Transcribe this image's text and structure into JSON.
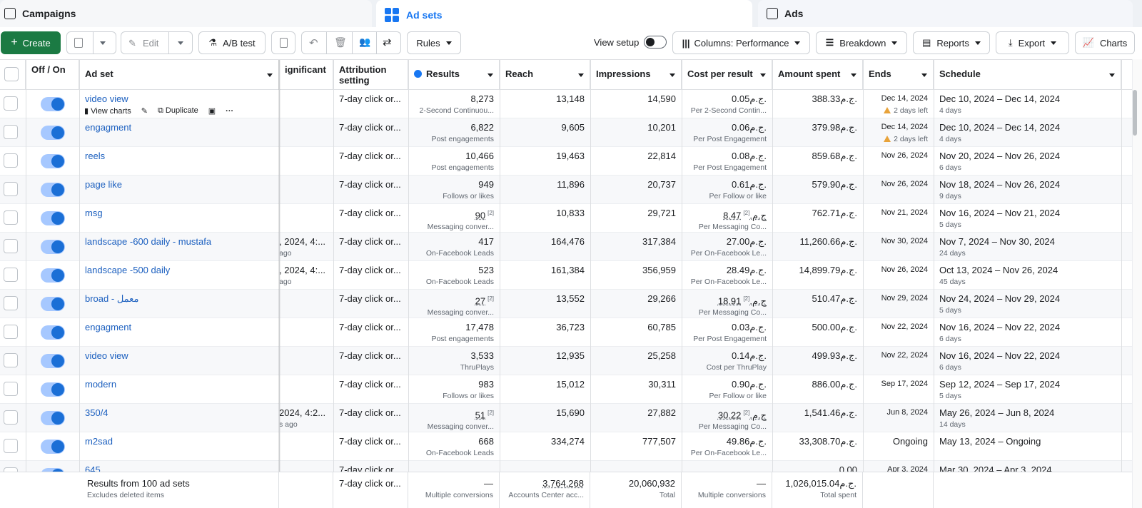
{
  "tabs": {
    "campaigns": "Campaigns",
    "adsets": "Ad sets",
    "ads": "Ads"
  },
  "toolbar": {
    "create": "Create",
    "edit": "Edit",
    "abtest": "A/B test",
    "rules": "Rules",
    "view_setup": "View setup",
    "columns": "Columns: Performance",
    "breakdown": "Breakdown",
    "reports": "Reports",
    "export": "Export",
    "charts": "Charts"
  },
  "columns": {
    "offon": "Off / On",
    "adset": "Ad set",
    "significant": "ignificant",
    "attribution": "Attribution setting",
    "results": "Results",
    "reach": "Reach",
    "impressions": "Impressions",
    "cpr": "Cost per result",
    "spent": "Amount spent",
    "ends": "Ends",
    "schedule": "Schedule"
  },
  "row_actions": {
    "charts": "View charts",
    "duplicate": "Duplicate"
  },
  "rows": [
    {
      "name": "video view",
      "sig": "",
      "sig_sub": "",
      "attr": "7-day click or...",
      "results": "8,273",
      "results_sub": "2-Second Continuou...",
      "reach": "13,148",
      "impr": "14,590",
      "cpr": "0.05ج.م.",
      "cpr_sub": "Per 2-Second Contin...",
      "spent": "388.33ج.م.",
      "ends": "Dec 14, 2024",
      "ends_sub": "2 days left",
      "sched": "Dec 10, 2024 – Dec 14, 2024",
      "sched_sub": "4 days"
    },
    {
      "name": "engagment",
      "sig": "",
      "sig_sub": "",
      "attr": "7-day click or...",
      "results": "6,822",
      "results_sub": "Post engagements",
      "reach": "9,605",
      "impr": "10,201",
      "cpr": "0.06ج.م.",
      "cpr_sub": "Per Post Engagement",
      "spent": "379.98ج.م.",
      "ends": "Dec 14, 2024",
      "ends_sub": "2 days left",
      "sched": "Dec 10, 2024 – Dec 14, 2024",
      "sched_sub": "4 days"
    },
    {
      "name": "reels",
      "sig": "",
      "sig_sub": "",
      "attr": "7-day click or...",
      "results": "10,466",
      "results_sub": "Post engagements",
      "reach": "19,463",
      "impr": "22,814",
      "cpr": "0.08ج.م.",
      "cpr_sub": "Per Post Engagement",
      "spent": "859.68ج.م.",
      "ends": "Nov 26, 2024",
      "ends_sub": "",
      "sched": "Nov 20, 2024 – Nov 26, 2024",
      "sched_sub": "6 days"
    },
    {
      "name": "page like",
      "sig": "",
      "sig_sub": "",
      "attr": "7-day click or...",
      "results": "949",
      "results_sub": "Follows or likes",
      "reach": "11,896",
      "impr": "20,737",
      "cpr": "0.61ج.م.",
      "cpr_sub": "Per Follow or like",
      "spent": "579.90ج.م.",
      "ends": "Nov 26, 2024",
      "ends_sub": "",
      "sched": "Nov 18, 2024 – Nov 26, 2024",
      "sched_sub": "9 days"
    },
    {
      "name": "msg",
      "sig": "",
      "sig_sub": "",
      "attr": "7-day click or...",
      "results": "90",
      "results_sup": "[2]",
      "results_sub": "Messaging conver...",
      "reach": "10,833",
      "impr": "29,721",
      "cpr": "8.47ج.م.",
      "cpr_sup": "[2]",
      "cpr_sub": "Per Messaging Co...",
      "spent": "762.71ج.م.",
      "ends": "Nov 21, 2024",
      "ends_sub": "",
      "sched": "Nov 16, 2024 – Nov 21, 2024",
      "sched_sub": "5 days"
    },
    {
      "name": "landscape -600 daily - mustafa",
      "sig": ", 2024, 4:...",
      "sig_sub": "ago",
      "attr": "7-day click or...",
      "results": "417",
      "results_sub": "On-Facebook Leads",
      "reach": "164,476",
      "impr": "317,384",
      "cpr": "27.00ج.م.",
      "cpr_sub": "Per On-Facebook Le...",
      "spent": "11,260.66ج.م.",
      "ends": "Nov 30, 2024",
      "ends_sub": "",
      "sched": "Nov 7, 2024 – Nov 30, 2024",
      "sched_sub": "24 days"
    },
    {
      "name": "landscape -500 daily",
      "sig": ", 2024, 4:...",
      "sig_sub": "ago",
      "attr": "7-day click or...",
      "results": "523",
      "results_sub": "On-Facebook Leads",
      "reach": "161,384",
      "impr": "356,959",
      "cpr": "28.49ج.م.",
      "cpr_sub": "Per On-Facebook Le...",
      "spent": "14,899.79ج.م.",
      "ends": "Nov 26, 2024",
      "ends_sub": "",
      "sched": "Oct 13, 2024 – Nov 26, 2024",
      "sched_sub": "45 days"
    },
    {
      "name": "broad - معمل",
      "sig": "",
      "sig_sub": "",
      "attr": "7-day click or...",
      "results": "27",
      "results_sup": "[2]",
      "results_sub": "Messaging conver...",
      "reach": "13,552",
      "impr": "29,266",
      "cpr": "18.91ج.م.",
      "cpr_sup": "[2]",
      "cpr_sub": "Per Messaging Co...",
      "spent": "510.47ج.م.",
      "ends": "Nov 29, 2024",
      "ends_sub": "",
      "sched": "Nov 24, 2024 – Nov 29, 2024",
      "sched_sub": "5 days"
    },
    {
      "name": "engagment",
      "sig": "",
      "sig_sub": "",
      "attr": "7-day click or...",
      "results": "17,478",
      "results_sub": "Post engagements",
      "reach": "36,723",
      "impr": "60,785",
      "cpr": "0.03ج.م.",
      "cpr_sub": "Per Post Engagement",
      "spent": "500.00ج.م.",
      "ends": "Nov 22, 2024",
      "ends_sub": "",
      "sched": "Nov 16, 2024 – Nov 22, 2024",
      "sched_sub": "6 days"
    },
    {
      "name": "video view",
      "sig": "",
      "sig_sub": "",
      "attr": "7-day click or...",
      "results": "3,533",
      "results_sub": "ThruPlays",
      "reach": "12,935",
      "impr": "25,258",
      "cpr": "0.14ج.م.",
      "cpr_sub": "Cost per ThruPlay",
      "spent": "499.93ج.م.",
      "ends": "Nov 22, 2024",
      "ends_sub": "",
      "sched": "Nov 16, 2024 – Nov 22, 2024",
      "sched_sub": "6 days"
    },
    {
      "name": "modern",
      "sig": "",
      "sig_sub": "",
      "attr": "7-day click or...",
      "results": "983",
      "results_sub": "Follows or likes",
      "reach": "15,012",
      "impr": "30,311",
      "cpr": "0.90ج.م.",
      "cpr_sub": "Per Follow or like",
      "spent": "886.00ج.م.",
      "ends": "Sep 17, 2024",
      "ends_sub": "",
      "sched": "Sep 12, 2024 – Sep 17, 2024",
      "sched_sub": "5 days"
    },
    {
      "name": "350/4",
      "sig": "2024, 4:2...",
      "sig_sub": "s ago",
      "attr": "7-day click or...",
      "results": "51",
      "results_sup": "[2]",
      "results_sub": "Messaging conver...",
      "reach": "15,690",
      "impr": "27,882",
      "cpr": "30.22ج.م.",
      "cpr_sup": "[2]",
      "cpr_sub": "Per Messaging Co...",
      "spent": "1,541.46ج.م.",
      "ends": "Jun 8, 2024",
      "ends_sub": "",
      "sched": "May 26, 2024 – Jun 8, 2024",
      "sched_sub": "14 days"
    },
    {
      "name": "m2sad",
      "sig": "",
      "sig_sub": "",
      "attr": "7-day click or...",
      "results": "668",
      "results_sub": "On-Facebook Leads",
      "reach": "334,274",
      "impr": "777,507",
      "cpr": "49.86ج.م.",
      "cpr_sub": "Per On-Facebook Le...",
      "spent": "33,308.70ج.م.",
      "ends": "Ongoing",
      "ends_sub": "",
      "sched": "May 13, 2024 – Ongoing",
      "sched_sub": ""
    },
    {
      "name": "645",
      "sig": "",
      "sig_sub": "",
      "attr": "7-day click or...",
      "results": "",
      "results_sub": "",
      "reach": "",
      "impr": "",
      "cpr": "",
      "cpr_sub": "",
      "spent": "0.00",
      "ends": "Apr 3, 2024",
      "ends_sub": "",
      "sched": "Mar 30, 2024 – Apr 3, 2024",
      "sched_sub": ""
    }
  ],
  "footer": {
    "title": "Results from 100 ad sets",
    "sub": "Excludes deleted items",
    "attr": "7-day click or...",
    "results": "—",
    "results_sub": "Multiple conversions",
    "reach": "3,764,268",
    "reach_sub": "Accounts Center acc...",
    "impr": "20,060,932",
    "impr_sub": "Total",
    "cpr": "—",
    "cpr_sub": "Multiple conversions",
    "spent": "1,026,015.04ج.م.",
    "spent_sub": "Total spent"
  },
  "colors": {
    "accent": "#1877f2",
    "create": "#1b7a43",
    "toggle": "#1b6fd6",
    "warning": "#e8a33a"
  },
  "icons": [
    "campaigns-icon",
    "adsets-grid-icon",
    "ads-icon",
    "plus-icon",
    "duplicate-icon",
    "edit-icon",
    "beaker-icon",
    "clipboard-icon",
    "undo-icon",
    "trash-icon",
    "people-icon",
    "share-icon",
    "columns-icon",
    "breakdown-icon",
    "reports-icon",
    "export-icon",
    "charts-icon",
    "info-icon",
    "warning-icon"
  ]
}
